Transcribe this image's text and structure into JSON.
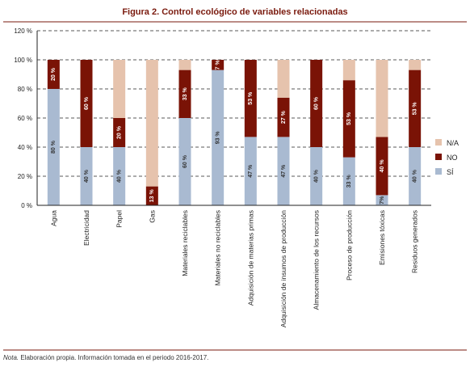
{
  "title": "Figura 2. Control ecológico de variables relacionadas",
  "note": {
    "label": "Nota.",
    "text": "Elaboración propia. Información tomada en el periodo 2016-2017."
  },
  "chart_data": {
    "type": "bar",
    "stacked": true,
    "categories": [
      "Agua",
      "Electricidad",
      "Papel",
      "Gas",
      "Materiales reciclables",
      "Materiales no reciclables",
      "Adquisición de materias primas",
      "Adquisición de insumos de producción",
      "Almacenamiento de los recursos",
      "Proceso de producción",
      "Emisiones tóxicas",
      "Residuos generados"
    ],
    "series": [
      {
        "name": "SÍ",
        "color": "#a9bad1",
        "label_color": "#333333",
        "values": [
          80,
          40,
          40,
          0,
          60,
          93,
          47,
          47,
          40,
          33,
          7,
          40
        ],
        "labels": [
          "80 %",
          "40 %",
          "40 %",
          "",
          "60 %",
          "93 %",
          "47 %",
          "47 %",
          "40 %",
          "33 %",
          "7%",
          "40 %"
        ]
      },
      {
        "name": "NO",
        "color": "#7a1306",
        "label_color": "#ffffff",
        "values": [
          20,
          60,
          20,
          13,
          33,
          7,
          53,
          27,
          60,
          53,
          40,
          53
        ],
        "labels": [
          "20 %",
          "60 %",
          "20 %",
          "13 %",
          "33 %",
          "7 %",
          "53 %",
          "27 %",
          "60 %",
          "53 %",
          "40 %",
          "53 %"
        ]
      },
      {
        "name": "N/A",
        "color": "#e6c3ad",
        "label_color": "#333333",
        "values": [
          0,
          0,
          40,
          87,
          7,
          0,
          0,
          26,
          0,
          14,
          53,
          7
        ],
        "labels": [
          "",
          "",
          "",
          "",
          "",
          "",
          "",
          "",
          "",
          "",
          "",
          ""
        ]
      }
    ],
    "ylim": [
      0,
      120
    ],
    "yticks": [
      0,
      20,
      40,
      60,
      80,
      100,
      120
    ],
    "ytick_labels": [
      "0 %",
      "20 %",
      "40 %",
      "60 %",
      "80 %",
      "100 %",
      "120 %"
    ],
    "grid": true,
    "legend": [
      "N/A",
      "NO",
      "SÍ"
    ],
    "legend_position": "right"
  }
}
